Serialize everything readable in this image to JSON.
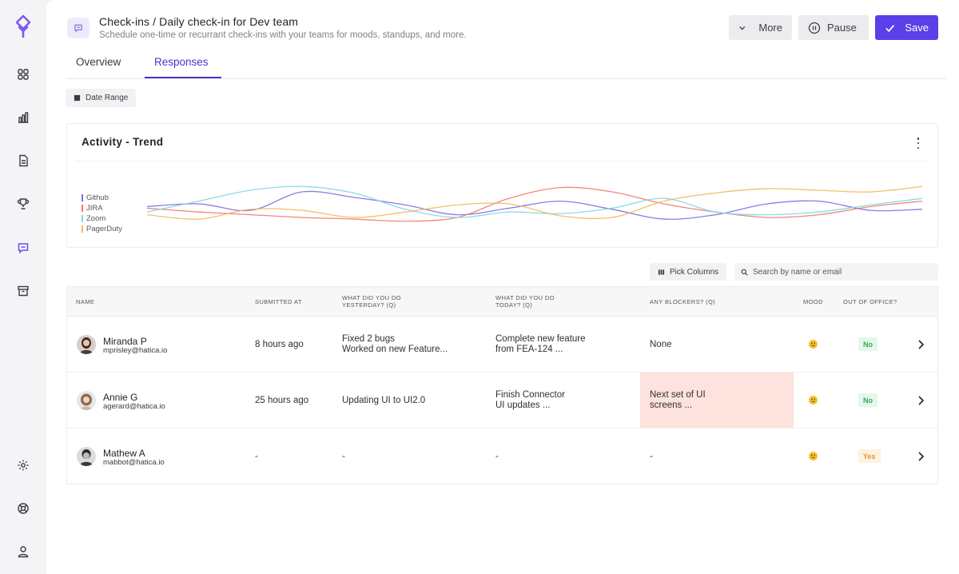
{
  "header": {
    "title": "Check-ins / Daily check-in for Dev team",
    "subtitle": "Schedule one-time or recurrant check-ins with your teams for moods, standups, and more.",
    "more_label": "More",
    "pause_label": "Pause",
    "save_label": "Save"
  },
  "tabs": [
    {
      "label": "Overview",
      "active": false
    },
    {
      "label": "Responses",
      "active": true
    }
  ],
  "filters": {
    "date_range_label": "Date Range"
  },
  "chart_card": {
    "title": "Activity - Trend"
  },
  "chart_data": {
    "type": "line",
    "title": "Activity - Trend",
    "series": [
      {
        "name": "Github",
        "color": "#7b6ee0",
        "values": [
          0.45,
          0.5,
          0.38,
          0.72,
          0.62,
          0.48,
          0.3,
          0.42,
          0.55,
          0.4,
          0.22,
          0.3,
          0.5,
          0.55,
          0.38,
          0.4
        ]
      },
      {
        "name": "JIRA",
        "color": "#f07a6a",
        "values": [
          0.42,
          0.35,
          0.3,
          0.25,
          0.22,
          0.18,
          0.25,
          0.6,
          0.8,
          0.72,
          0.5,
          0.35,
          0.25,
          0.3,
          0.45,
          0.55
        ]
      },
      {
        "name": "Zoom",
        "color": "#7fd6e0",
        "values": [
          0.35,
          0.55,
          0.75,
          0.82,
          0.7,
          0.4,
          0.25,
          0.35,
          0.32,
          0.42,
          0.6,
          0.35,
          0.3,
          0.35,
          0.48,
          0.6
        ]
      },
      {
        "name": "PagerDuty",
        "color": "#f4b65a",
        "values": [
          0.3,
          0.22,
          0.4,
          0.38,
          0.25,
          0.35,
          0.48,
          0.5,
          0.28,
          0.25,
          0.55,
          0.7,
          0.78,
          0.75,
          0.72,
          0.82
        ]
      }
    ],
    "legend": "left",
    "grid": false
  },
  "table_toolbar": {
    "pick_columns_label": "Pick Columns",
    "search_placeholder": "Search by name or email"
  },
  "table": {
    "columns": [
      "Name",
      "Submitted at",
      "What did you do yesterday? (Q)",
      "What did you do today? (Q)",
      "Any blockers? (Q)",
      "Mood",
      "Out of office?"
    ],
    "rows": [
      {
        "name": "Miranda P",
        "email": "mprisley@hatica.io",
        "submitted": "8 hours ago",
        "yesterday": "Fixed 2 bugs\nWorked on new Feature...",
        "today": "Complete new feature\nfrom FEA-124 ...",
        "blockers": "None",
        "blocker_highlight": false,
        "ooo": "No"
      },
      {
        "name": "Annie G",
        "email": "agerard@hatica.io",
        "submitted": "25 hours ago",
        "yesterday": "Updating UI to UI2.0",
        "today": "Finish Connector\nUI updates ...",
        "blockers": "Next set of UI\nscreens ...",
        "blocker_highlight": true,
        "ooo": "No"
      },
      {
        "name": "Mathew A",
        "email": "mabbot@hatica.io",
        "submitted": "-",
        "yesterday": "-",
        "today": "-",
        "blockers": "-",
        "blocker_highlight": false,
        "ooo": "Yes"
      }
    ]
  },
  "colors": {
    "accent": "#5b3fe8",
    "tab_active": "#4b33c9",
    "blocker_bg": "#fde2dd"
  },
  "sidebar_icons": [
    "logo-icon",
    "dashboard-icon",
    "bar-chart-icon",
    "document-icon",
    "trophy-icon",
    "chat-icon",
    "archive-icon",
    "settings-icon",
    "help-icon",
    "user-icon"
  ]
}
